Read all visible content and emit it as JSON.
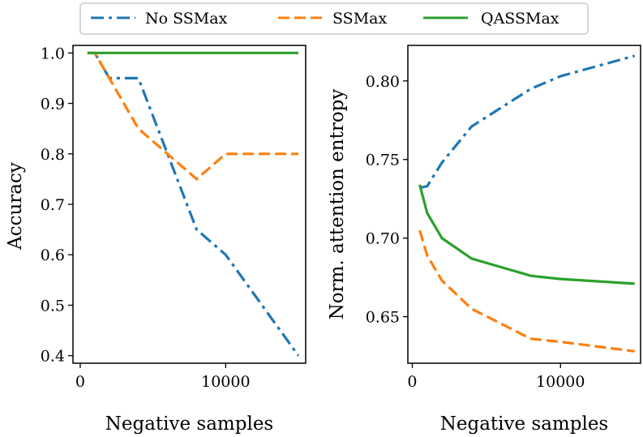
{
  "colors": {
    "no_ssmax": "#1f77b4",
    "ssmax": "#ff7f0e",
    "qassmax": "#2ca02c"
  },
  "legend": [
    {
      "label": "No SSMax",
      "style": "dashdot",
      "color": "#1f77b4"
    },
    {
      "label": "SSMax",
      "style": "dashed",
      "color": "#ff7f0e"
    },
    {
      "label": "QASSMax",
      "style": "solid",
      "color": "#2ca02c"
    }
  ],
  "chart_data": [
    {
      "type": "line",
      "xlabel": "Negative samples",
      "ylabel": "Accuracy",
      "xlim": [
        -500,
        15500
      ],
      "ylim": [
        0.385,
        1.015
      ],
      "xticks": [
        {
          "v": 0,
          "label": "0"
        },
        {
          "v": 10000,
          "label": "10000"
        }
      ],
      "yticks": [
        {
          "v": 0.4,
          "label": "0.4"
        },
        {
          "v": 0.5,
          "label": "0.5"
        },
        {
          "v": 0.6,
          "label": "0.6"
        },
        {
          "v": 0.7,
          "label": "0.7"
        },
        {
          "v": 0.8,
          "label": "0.8"
        },
        {
          "v": 0.9,
          "label": "0.9"
        },
        {
          "v": 1.0,
          "label": "1.0"
        }
      ],
      "series": [
        {
          "name": "No SSMax",
          "style": "dashdot",
          "color": "#1f77b4",
          "x": [
            500,
            1000,
            2000,
            4000,
            8000,
            10000,
            15000
          ],
          "y": [
            1.0,
            1.0,
            0.95,
            0.95,
            0.65,
            0.6,
            0.4
          ]
        },
        {
          "name": "SSMax",
          "style": "dashed",
          "color": "#ff7f0e",
          "x": [
            500,
            1000,
            2000,
            4000,
            8000,
            10000,
            15000
          ],
          "y": [
            1.0,
            1.0,
            0.95,
            0.85,
            0.75,
            0.8,
            0.8
          ]
        },
        {
          "name": "QASSMax",
          "style": "solid",
          "color": "#2ca02c",
          "x": [
            500,
            1000,
            2000,
            4000,
            8000,
            10000,
            15000
          ],
          "y": [
            1.0,
            1.0,
            1.0,
            1.0,
            1.0,
            1.0,
            1.0
          ]
        }
      ]
    },
    {
      "type": "line",
      "xlabel": "Negative samples",
      "ylabel": "Norm. attention entropy",
      "xlim": [
        -300,
        15400
      ],
      "ylim": [
        0.6204,
        0.8226
      ],
      "xticks": [
        {
          "v": 0,
          "label": "0"
        },
        {
          "v": 10000,
          "label": "10000"
        }
      ],
      "yticks": [
        {
          "v": 0.65,
          "label": "0.65"
        },
        {
          "v": 0.7,
          "label": "0.70"
        },
        {
          "v": 0.75,
          "label": "0.75"
        },
        {
          "v": 0.8,
          "label": "0.80"
        }
      ],
      "series": [
        {
          "name": "No SSMax",
          "style": "dashdot",
          "color": "#1f77b4",
          "x": [
            500,
            1000,
            2000,
            4000,
            8000,
            10000,
            15000
          ],
          "y": [
            0.732,
            0.733,
            0.748,
            0.771,
            0.795,
            0.803,
            0.816
          ]
        },
        {
          "name": "SSMax",
          "style": "dashed",
          "color": "#ff7f0e",
          "x": [
            500,
            1000,
            2000,
            4000,
            8000,
            10000,
            15000
          ],
          "y": [
            0.705,
            0.689,
            0.673,
            0.655,
            0.636,
            0.634,
            0.628
          ]
        },
        {
          "name": "QASSMax",
          "style": "solid",
          "color": "#2ca02c",
          "x": [
            500,
            1000,
            2000,
            4000,
            8000,
            10000,
            15000
          ],
          "y": [
            0.734,
            0.716,
            0.7,
            0.687,
            0.676,
            0.674,
            0.671
          ]
        }
      ]
    }
  ]
}
